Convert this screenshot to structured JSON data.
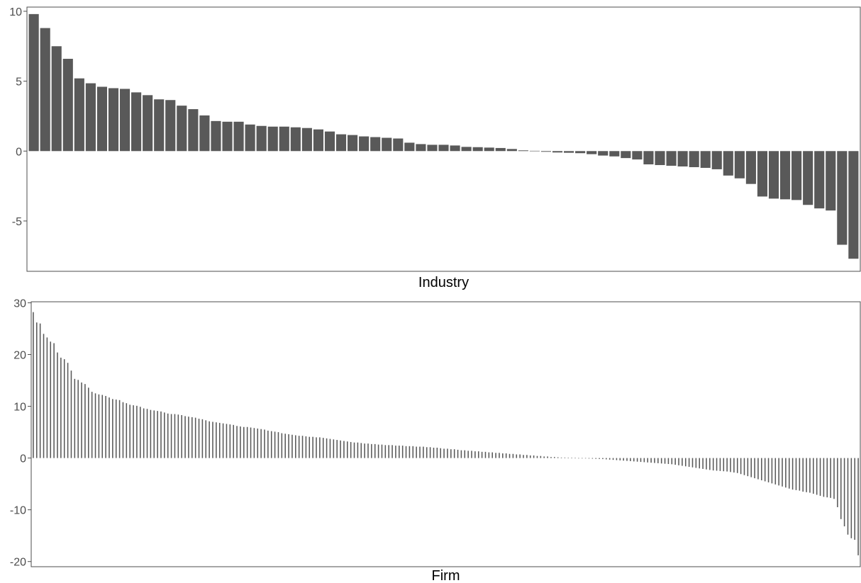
{
  "colors": {
    "bar": "#595959",
    "frame": "#4d4d4d",
    "tick": "#4d4d4d",
    "background": "#ffffff"
  },
  "chart_data": [
    {
      "type": "bar",
      "xlabel": "Industry",
      "ylabel": "",
      "ylim": [
        -8.6,
        10.3
      ],
      "yticks": [
        10,
        5,
        0,
        -5
      ],
      "yticklabels": [
        "10",
        "5",
        "0",
        "-5"
      ],
      "grid": false,
      "legend": "none",
      "values": [
        9.8,
        8.8,
        7.5,
        6.6,
        5.2,
        4.85,
        4.6,
        4.5,
        4.45,
        4.2,
        4.0,
        3.7,
        3.65,
        3.25,
        3.0,
        2.55,
        2.15,
        2.1,
        2.1,
        1.9,
        1.8,
        1.75,
        1.75,
        1.7,
        1.65,
        1.55,
        1.4,
        1.2,
        1.15,
        1.05,
        1.0,
        0.95,
        0.9,
        0.6,
        0.5,
        0.45,
        0.45,
        0.4,
        0.3,
        0.28,
        0.25,
        0.22,
        0.15,
        0.05,
        0.02,
        -0.05,
        -0.1,
        -0.12,
        -0.15,
        -0.22,
        -0.32,
        -0.38,
        -0.5,
        -0.6,
        -0.95,
        -1.0,
        -1.05,
        -1.1,
        -1.15,
        -1.2,
        -1.3,
        -1.75,
        -1.95,
        -2.35,
        -3.25,
        -3.4,
        -3.45,
        -3.5,
        -3.85,
        -4.1,
        -4.25,
        -6.7,
        -7.7
      ]
    },
    {
      "type": "bar",
      "xlabel": "Firm",
      "ylabel": "",
      "ylim": [
        -21,
        30.2
      ],
      "yticks": [
        30,
        20,
        10,
        0,
        -10,
        -20
      ],
      "yticklabels": [
        "30",
        "20",
        "10",
        "0",
        "-10",
        "-20"
      ],
      "grid": false,
      "legend": "none",
      "values": [
        28.2,
        26.2,
        26.0,
        24.0,
        23.3,
        22.5,
        22.2,
        20.4,
        19.4,
        19.1,
        18.4,
        16.9,
        15.3,
        15.1,
        14.6,
        14.3,
        13.6,
        12.8,
        12.5,
        12.3,
        12.2,
        12.0,
        11.7,
        11.4,
        11.3,
        11.2,
        10.8,
        10.6,
        10.3,
        10.2,
        10.1,
        9.9,
        9.6,
        9.5,
        9.3,
        9.2,
        9.1,
        9.0,
        8.8,
        8.6,
        8.5,
        8.5,
        8.4,
        8.3,
        8.1,
        8.0,
        7.9,
        7.8,
        7.6,
        7.5,
        7.3,
        7.1,
        7.0,
        6.9,
        6.8,
        6.7,
        6.6,
        6.5,
        6.4,
        6.2,
        6.1,
        6.0,
        6.0,
        5.9,
        5.8,
        5.7,
        5.6,
        5.5,
        5.3,
        5.2,
        5.1,
        5.0,
        4.8,
        4.7,
        4.6,
        4.5,
        4.4,
        4.3,
        4.3,
        4.2,
        4.1,
        4.1,
        4.0,
        4.0,
        3.9,
        3.8,
        3.7,
        3.6,
        3.5,
        3.4,
        3.3,
        3.2,
        3.1,
        3.0,
        3.0,
        2.9,
        2.8,
        2.8,
        2.7,
        2.7,
        2.6,
        2.6,
        2.5,
        2.5,
        2.5,
        2.4,
        2.4,
        2.4,
        2.3,
        2.3,
        2.3,
        2.2,
        2.2,
        2.2,
        2.1,
        2.1,
        2.0,
        2.0,
        1.9,
        1.8,
        1.8,
        1.7,
        1.7,
        1.6,
        1.5,
        1.5,
        1.4,
        1.4,
        1.3,
        1.3,
        1.2,
        1.2,
        1.1,
        1.1,
        1.0,
        1.0,
        0.9,
        0.9,
        0.8,
        0.8,
        0.7,
        0.7,
        0.6,
        0.6,
        0.5,
        0.5,
        0.4,
        0.4,
        0.3,
        0.3,
        0.2,
        0.2,
        0.15,
        0.1,
        0.1,
        0.05,
        0.05,
        0.02,
        -0.02,
        -0.05,
        -0.08,
        -0.1,
        -0.12,
        -0.15,
        -0.18,
        -0.2,
        -0.25,
        -0.3,
        -0.35,
        -0.4,
        -0.45,
        -0.5,
        -0.55,
        -0.6,
        -0.65,
        -0.7,
        -0.75,
        -0.8,
        -0.85,
        -0.9,
        -0.95,
        -1.0,
        -1.05,
        -1.1,
        -1.15,
        -1.2,
        -1.3,
        -1.4,
        -1.5,
        -1.6,
        -1.7,
        -1.8,
        -1.9,
        -2.0,
        -2.1,
        -2.2,
        -2.3,
        -2.4,
        -2.45,
        -2.5,
        -2.55,
        -2.6,
        -2.7,
        -2.8,
        -2.9,
        -3.1,
        -3.3,
        -3.5,
        -3.7,
        -3.9,
        -4.1,
        -4.3,
        -4.5,
        -4.7,
        -4.9,
        -5.1,
        -5.3,
        -5.5,
        -5.7,
        -5.9,
        -6.1,
        -6.2,
        -6.3,
        -6.5,
        -6.6,
        -6.7,
        -6.9,
        -7.1,
        -7.3,
        -7.5,
        -7.6,
        -7.7,
        -7.9,
        -9.5,
        -11.8,
        -13.2,
        -14.8,
        -15.5,
        -15.8,
        -18.8
      ]
    }
  ]
}
